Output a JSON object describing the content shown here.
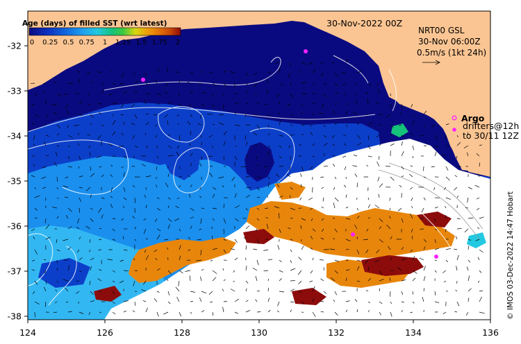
{
  "legend": {
    "title": "Age (days) of filled SST (wrt latest)",
    "ticks": [
      "0",
      "0.25",
      "0.5",
      "0.75",
      "1",
      "1.25",
      "1.5",
      "1.75",
      "2"
    ],
    "colors": [
      "#0a0a80",
      "#0c2fbf",
      "#1166dd",
      "#1e9ef0",
      "#22c9e0",
      "#15c27a",
      "#3cc940",
      "#d6d612",
      "#f0a008",
      "#e07008",
      "#c84808",
      "#8c0a0a"
    ]
  },
  "map": {
    "date_label": "30-Nov-2022 00Z",
    "gsl_lines": [
      "NRT00 GSL",
      "30-Nov 06:00Z",
      "0.5m/s (1kt 24h)"
    ],
    "argo_label": "Argo",
    "drifters_lines": [
      "drifters@12h",
      "to 30/11 12Z"
    ],
    "credit": "© IMOS 03-Dec-2022 14:47 Hobart",
    "lon_ticks": [
      "124",
      "126",
      "128",
      "130",
      "132",
      "134",
      "136"
    ],
    "lat_ticks": [
      "-32",
      "-33",
      "-34",
      "-35",
      "-36",
      "-37",
      "-38"
    ],
    "colors": {
      "land": "#fbc593",
      "sst_new": "#0a0a80",
      "sst_mid": "#0c3fc9",
      "sst_older": "#1a8fee",
      "sst_oldest": "#33b7f2",
      "cloud": "#ffffff",
      "orange": "#e8860c",
      "dark_red": "#8c0c0c",
      "argo": "#ff22ff"
    }
  }
}
